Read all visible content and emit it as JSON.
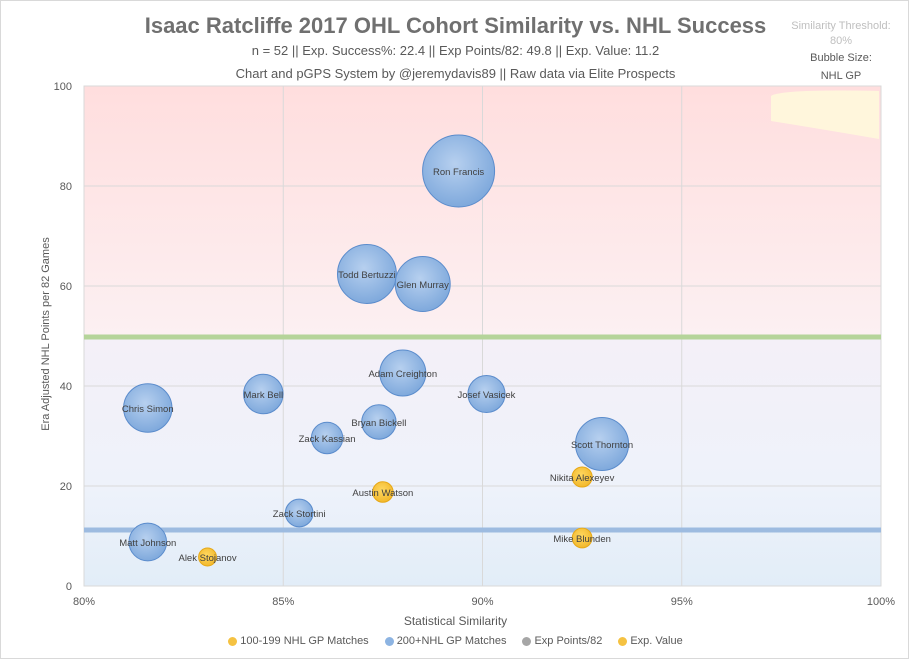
{
  "header": {
    "title": "Isaac Ratcliffe 2017 OHL Cohort Similarity vs. NHL Success",
    "subtitle": "n = 52 || Exp. Success%: 22.4 || Exp Points/82: 49.8 || Exp. Value: 11.2",
    "credit": "Chart and pGPS System by @jeremydavis89 || Raw data via Elite Prospects",
    "threshold_label": "Similarity Threshold:",
    "threshold_value": "80%",
    "bubble_label": "Bubble Size:",
    "bubble_value": "NHL GP"
  },
  "chart_data": {
    "type": "scatter",
    "subtype": "bubble",
    "xlabel": "Statistical Similarity",
    "ylabel": "Era Adjusted NHL Points per 82 Games",
    "xlim": [
      80,
      100
    ],
    "ylim": [
      0,
      100
    ],
    "x_ticks": [
      "80%",
      "85%",
      "90%",
      "95%",
      "100%"
    ],
    "y_ticks": [
      "0",
      "20",
      "40",
      "60",
      "80",
      "100"
    ],
    "grid": true,
    "legend_position": "bottom",
    "legend": [
      {
        "label": "100-199 NHL GP Matches",
        "color": "#f5c242"
      },
      {
        "label": "200+NHL GP Matches",
        "color": "#8db4e2"
      },
      {
        "label": "Exp Points/82",
        "color": "#a6a6a6"
      },
      {
        "label": "Exp. Value",
        "color": "#f5c242"
      }
    ],
    "reference_lines": [
      {
        "name": "Exp Points/82",
        "y": 49.8,
        "color": "#b5d49a"
      },
      {
        "name": "Exp. Value",
        "y": 11.2,
        "color": "#9dbbe0"
      }
    ],
    "series": [
      {
        "name": "200+NHL GP Matches",
        "color": "#8db4e2",
        "points": [
          {
            "label": "Ron Francis",
            "x": 89.4,
            "y": 83.0,
            "size": 1731
          },
          {
            "label": "Todd Bertuzzi",
            "x": 87.1,
            "y": 62.4,
            "size": 1159
          },
          {
            "label": "Glen Murray",
            "x": 88.5,
            "y": 60.4,
            "size": 1009
          },
          {
            "label": "Adam Creighton",
            "x": 88.0,
            "y": 42.6,
            "size": 708
          },
          {
            "label": "Josef Vasicek",
            "x": 90.1,
            "y": 38.4,
            "size": 460
          },
          {
            "label": "Chris Simon",
            "x": 81.6,
            "y": 35.6,
            "size": 782
          },
          {
            "label": "Mark Bell",
            "x": 84.5,
            "y": 38.4,
            "size": 522
          },
          {
            "label": "Bryan Bickell",
            "x": 87.4,
            "y": 32.8,
            "size": 395
          },
          {
            "label": "Zack Kassian",
            "x": 86.1,
            "y": 29.6,
            "size": 330
          },
          {
            "label": "Scott Thornton",
            "x": 93.0,
            "y": 28.4,
            "size": 941
          },
          {
            "label": "Zack Stortini",
            "x": 85.4,
            "y": 14.6,
            "size": 256
          },
          {
            "label": "Matt Johnson",
            "x": 81.6,
            "y": 8.8,
            "size": 473
          }
        ]
      },
      {
        "name": "100-199 NHL GP Matches",
        "color": "#f5c242",
        "points": [
          {
            "label": "Nikita Alexeyev",
            "x": 92.5,
            "y": 21.8,
            "size": 135
          },
          {
            "label": "Austin Watson",
            "x": 87.5,
            "y": 18.8,
            "size": 140
          },
          {
            "label": "Mike Blunden",
            "x": 92.5,
            "y": 9.6,
            "size": 130
          },
          {
            "label": "Alek Stojanov",
            "x": 83.1,
            "y": 5.8,
            "size": 107
          }
        ]
      }
    ]
  }
}
